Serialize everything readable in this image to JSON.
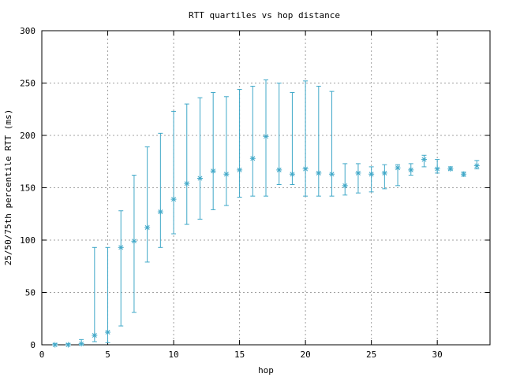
{
  "chart_data": {
    "type": "scatter",
    "title": "RTT quartiles vs hop distance",
    "xlabel": "hop",
    "ylabel": "25/50/75th percentile RTT (ms)",
    "xlim": [
      0,
      34
    ],
    "ylim": [
      0,
      300
    ],
    "xticks": [
      0,
      5,
      10,
      15,
      20,
      25,
      30
    ],
    "yticks": [
      0,
      50,
      100,
      150,
      200,
      250,
      300
    ],
    "grid": true,
    "legend": "none",
    "color": "#40a8c8",
    "series": [
      {
        "hops": [
          1,
          2,
          3,
          4,
          5,
          6,
          7,
          8,
          9,
          10,
          11,
          12,
          13,
          14,
          15,
          16,
          17,
          18,
          19,
          20,
          21,
          22,
          23,
          24,
          25,
          26,
          27,
          28,
          29,
          30,
          31,
          32,
          33
        ],
        "p25": [
          0,
          0,
          0,
          3,
          2,
          18,
          31,
          79,
          93,
          106,
          115,
          120,
          129,
          133,
          141,
          142,
          142,
          153,
          153,
          142,
          142,
          142,
          143,
          145,
          146,
          149,
          152,
          162,
          170,
          164,
          167,
          161,
          168
        ],
        "median": [
          0,
          0,
          1,
          9,
          12,
          93,
          99,
          112,
          127,
          139,
          154,
          159,
          166,
          163,
          167,
          178,
          199,
          167,
          163,
          168,
          164,
          163,
          152,
          164,
          163,
          164,
          169,
          167,
          177,
          168,
          168,
          163,
          171
        ],
        "p75": [
          1,
          1,
          5,
          93,
          93,
          128,
          162,
          189,
          202,
          223,
          230,
          236,
          241,
          237,
          244,
          247,
          253,
          250,
          241,
          252,
          247,
          242,
          173,
          173,
          170,
          172,
          172,
          173,
          181,
          177,
          170,
          165,
          176
        ]
      }
    ]
  }
}
